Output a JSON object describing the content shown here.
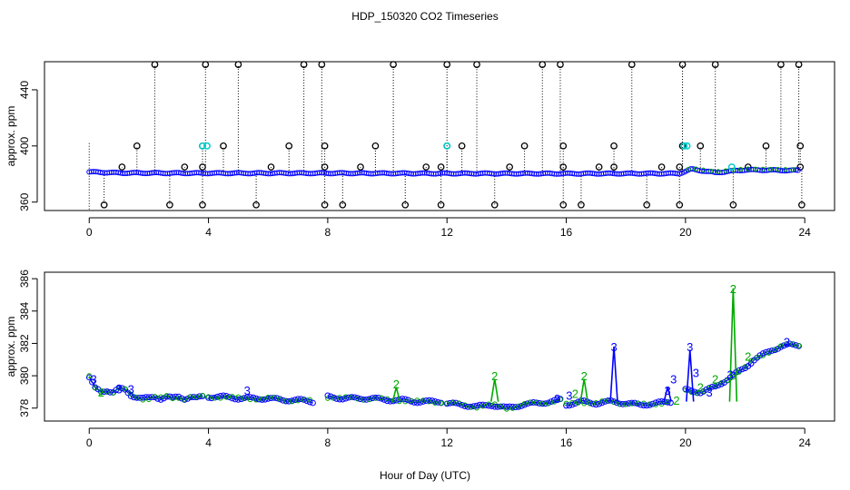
{
  "chart_data": [
    {
      "type": "scatter",
      "title": "HDP_150320  CO2 Timeseries",
      "xlabel": "",
      "ylabel": "approx. ppm",
      "xlim": [
        -1.5,
        25.0
      ],
      "ylim": [
        354,
        460
      ],
      "xticks": [
        "0",
        "4",
        "8",
        "12",
        "16",
        "20",
        "24"
      ],
      "xtick_values": [
        0,
        4,
        8,
        12,
        16,
        20,
        24
      ],
      "yticks": [
        "360",
        "400",
        "440"
      ],
      "ytick_values": [
        360,
        400,
        440
      ],
      "colors": {
        "black": "#000000",
        "cyan": "#00cccc",
        "blue": "#0000ff",
        "green": "#00aa00"
      },
      "baseline": [
        [
          0,
          381.5
        ],
        [
          1,
          380.8
        ],
        [
          4,
          380.6
        ],
        [
          8,
          380.6
        ],
        [
          12,
          380.4
        ],
        [
          16,
          380.3
        ],
        [
          19.8,
          380.4
        ],
        [
          20.2,
          383.5
        ],
        [
          21,
          381.0
        ],
        [
          22,
          383.0
        ],
        [
          23.8,
          382.5
        ]
      ],
      "spikes_high": [
        2.2,
        3.9,
        5.0,
        7.2,
        7.8,
        10.2,
        12.0,
        13.0,
        15.2,
        15.8,
        18.2,
        19.9,
        21.0,
        23.2,
        23.8
      ],
      "spikes_400": [
        1.6,
        3.8,
        4.5,
        6.7,
        7.9,
        9.6,
        12.0,
        12.5,
        14.6,
        15.9,
        17.6,
        19.9,
        20.5,
        22.7,
        23.85
      ],
      "spikes_low": [
        0.5,
        2.7,
        3.8,
        5.6,
        7.9,
        8.5,
        10.6,
        11.8,
        13.6,
        15.9,
        16.5,
        18.7,
        19.8,
        21.6,
        23.9
      ],
      "spikes_385": [
        1.1,
        3.2,
        3.8,
        6.1,
        7.9,
        9.1,
        11.3,
        11.8,
        14.1,
        15.9,
        17.1,
        17.6,
        19.2,
        19.8,
        22.1,
        23.85
      ],
      "cyan_points": [
        [
          3.8,
          400
        ],
        [
          3.95,
          400
        ],
        [
          12.0,
          400
        ],
        [
          19.95,
          400
        ],
        [
          20.05,
          400
        ],
        [
          21.55,
          385
        ]
      ]
    },
    {
      "type": "scatter",
      "title": "",
      "xlabel": "Hour of Day (UTC)",
      "ylabel": "approx. ppm",
      "xlim": [
        -1.5,
        25.0
      ],
      "ylim": [
        377.2,
        386.4
      ],
      "xticks": [
        "0",
        "4",
        "8",
        "12",
        "16",
        "20",
        "24"
      ],
      "xtick_values": [
        0,
        4,
        8,
        12,
        16,
        20,
        24
      ],
      "yticks": [
        "378",
        "380",
        "382",
        "384",
        "386"
      ],
      "ytick_values": [
        378,
        380,
        382,
        384,
        386
      ],
      "point_marker": "o",
      "labels_3": [
        [
          0.15,
          379.8
        ],
        [
          1.0,
          379.2
        ],
        [
          1.4,
          379.2
        ],
        [
          5.3,
          379.1
        ],
        [
          15.7,
          378.6
        ],
        [
          16.1,
          378.8
        ],
        [
          17.6,
          381.8
        ],
        [
          19.4,
          379.1
        ],
        [
          19.6,
          379.8
        ],
        [
          20.15,
          381.8
        ],
        [
          20.35,
          380.2
        ],
        [
          20.8,
          379.0
        ],
        [
          21.5,
          380.1
        ],
        [
          23.4,
          382.1
        ]
      ],
      "labels_2": [
        [
          0.4,
          379.0
        ],
        [
          10.3,
          379.5
        ],
        [
          13.6,
          380.0
        ],
        [
          16.3,
          378.9
        ],
        [
          16.6,
          380.0
        ],
        [
          19.7,
          378.5
        ],
        [
          20.5,
          379.3
        ],
        [
          21.0,
          379.8
        ],
        [
          21.6,
          385.4
        ],
        [
          22.1,
          381.2
        ]
      ],
      "segments": [
        {
          "name": "seg-a",
          "x": [
            0.0,
            0.2,
            0.4,
            0.6,
            0.8,
            1.0,
            1.2,
            1.4,
            1.6,
            1.8,
            2.0,
            2.2,
            2.4,
            2.6,
            2.8,
            3.0,
            3.2,
            3.4,
            3.6,
            3.8
          ],
          "y": [
            379.9,
            379.2,
            379.0,
            379.1,
            379.0,
            379.2,
            379.1,
            378.8,
            378.7,
            378.6,
            378.6,
            378.7,
            378.6,
            378.7,
            378.6,
            378.7,
            378.6,
            378.7,
            378.6,
            378.7
          ]
        },
        {
          "name": "seg-b",
          "x": [
            4.0,
            4.5,
            5.0,
            5.5,
            6.0,
            6.5,
            7.0,
            7.5
          ],
          "y": [
            378.7,
            378.7,
            378.6,
            378.6,
            378.6,
            378.5,
            378.5,
            378.4
          ]
        },
        {
          "name": "seg-c",
          "x": [
            8.0,
            8.5,
            9.0,
            9.5,
            10.0,
            10.5,
            11.0,
            11.5,
            11.8
          ],
          "y": [
            378.7,
            378.6,
            378.6,
            378.6,
            378.5,
            378.5,
            378.4,
            378.4,
            378.4
          ]
        },
        {
          "name": "seg-d",
          "x": [
            12.0,
            12.5,
            13.0,
            13.5,
            14.0,
            14.5,
            15.0,
            15.5,
            15.8
          ],
          "y": [
            378.3,
            378.2,
            378.1,
            378.2,
            378.0,
            378.2,
            378.3,
            378.4,
            378.5
          ]
        },
        {
          "name": "seg-e",
          "x": [
            16.0,
            16.5,
            17.0,
            17.5,
            18.0,
            18.5,
            19.0,
            19.5
          ],
          "y": [
            378.2,
            378.4,
            378.3,
            378.4,
            378.3,
            378.2,
            378.3,
            378.4
          ]
        },
        {
          "name": "seg-f",
          "x": [
            20.0,
            20.5,
            21.0,
            21.5,
            22.0,
            22.3,
            22.6,
            22.9,
            23.2,
            23.5,
            23.8
          ],
          "y": [
            379.1,
            379.0,
            379.3,
            379.9,
            380.5,
            381.0,
            381.3,
            381.6,
            381.8,
            381.9,
            381.9
          ]
        }
      ],
      "blue_spikes": [
        [
          17.6,
          381.8
        ],
        [
          20.15,
          381.6
        ],
        [
          19.4,
          379.3
        ]
      ],
      "green_spikes": [
        [
          21.6,
          385.4
        ],
        [
          13.6,
          379.8
        ],
        [
          16.6,
          379.8
        ],
        [
          10.3,
          379.3
        ]
      ]
    }
  ],
  "figure": {
    "title": "HDP_150320  CO2 Timeseries",
    "xlabel": "Hour of Day (UTC)",
    "top_ylabel": "approx. ppm",
    "bottom_ylabel": "approx. ppm"
  }
}
